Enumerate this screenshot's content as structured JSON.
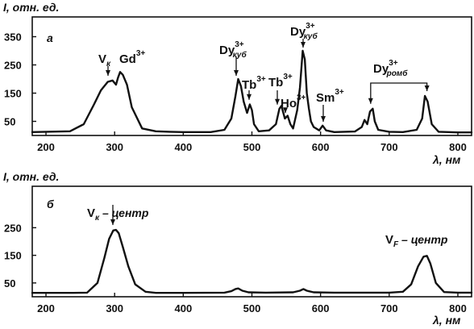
{
  "chart_data": [
    {
      "type": "line",
      "panel_label": "а",
      "ylabel": "I, отн. ед.",
      "xlabel": "λ, нм",
      "xlim": [
        180,
        820
      ],
      "ylim": [
        0,
        420
      ],
      "xticks": [
        200,
        300,
        400,
        500,
        600,
        700,
        800
      ],
      "yticks": [
        50,
        150,
        250,
        350
      ],
      "grid": false,
      "series": [
        {
          "x": [
            180,
            235,
            255,
            270,
            280,
            290,
            297,
            302,
            305,
            308,
            312,
            318,
            325,
            340,
            360,
            380,
            400,
            440,
            460,
            470,
            476,
            480,
            484,
            488,
            493,
            497,
            500,
            503,
            510,
            525,
            535,
            540,
            543,
            548,
            552,
            556,
            560,
            566,
            570,
            574,
            577,
            580,
            583,
            586,
            590,
            598,
            603,
            608,
            620,
            650,
            660,
            664,
            668,
            672,
            676,
            679,
            684,
            700,
            720,
            740,
            748,
            752,
            756,
            762,
            772,
            800,
            820
          ],
          "values": [
            12,
            15,
            40,
            110,
            160,
            190,
            195,
            180,
            205,
            225,
            215,
            180,
            100,
            25,
            15,
            13,
            12,
            12,
            20,
            60,
            140,
            200,
            175,
            120,
            80,
            110,
            90,
            40,
            15,
            18,
            40,
            95,
            105,
            60,
            70,
            40,
            25,
            90,
            170,
            300,
            270,
            150,
            95,
            50,
            30,
            18,
            35,
            18,
            12,
            14,
            30,
            55,
            40,
            85,
            95,
            50,
            20,
            13,
            12,
            20,
            60,
            140,
            120,
            40,
            13,
            11,
            11
          ]
        }
      ],
      "annotations": [
        {
          "label": "V",
          "sub": "к",
          "sup": "",
          "points": [
            [
              295,
              200
            ]
          ]
        },
        {
          "label": "Gd",
          "sub": "",
          "sup": "3+",
          "points": [
            [
              308,
              230
            ]
          ]
        },
        {
          "label": "Dy",
          "sub": "куб",
          "sup": "3+",
          "points": [
            [
              481,
              200
            ]
          ]
        },
        {
          "label": "Tb",
          "sub": "",
          "sup": "3+",
          "points": [
            [
              498,
              115
            ]
          ]
        },
        {
          "label": "Tb",
          "sub": "",
          "sup": "3+",
          "points": [
            [
              541,
              98
            ]
          ]
        },
        {
          "label": "Ho",
          "sub": "",
          "sup": "3+",
          "points": [
            [
              550,
              68
            ]
          ]
        },
        {
          "label": "Dy",
          "sub": "куб",
          "sup": "3+",
          "points": [
            [
              575,
              300
            ]
          ]
        },
        {
          "label": "Sm",
          "sub": "",
          "sup": "3+",
          "points": [
            [
              603,
              37
            ]
          ]
        },
        {
          "label": "Dy",
          "sub": "ромб",
          "sup": "3+",
          "points": [
            [
              673,
              95
            ],
            [
              755,
              140
            ]
          ]
        }
      ]
    },
    {
      "type": "line",
      "panel_label": "б",
      "ylabel": "I, отн. ед.",
      "xlabel": "λ, нм",
      "xlim": [
        180,
        820
      ],
      "ylim": [
        0,
        400
      ],
      "xticks": [
        200,
        300,
        400,
        500,
        600,
        700,
        800
      ],
      "yticks": [
        50,
        150,
        250
      ],
      "grid": false,
      "series": [
        {
          "x": [
            180,
            240,
            260,
            275,
            285,
            292,
            298,
            302,
            306,
            312,
            320,
            330,
            345,
            360,
            400,
            460,
            470,
            476,
            480,
            486,
            495,
            520,
            560,
            570,
            575,
            580,
            590,
            620,
            700,
            720,
            732,
            742,
            750,
            755,
            760,
            768,
            780,
            800,
            820
          ],
          "values": [
            14,
            14,
            15,
            50,
            140,
            210,
            240,
            242,
            230,
            180,
            110,
            45,
            18,
            14,
            14,
            15,
            20,
            28,
            30,
            22,
            16,
            15,
            16,
            22,
            28,
            22,
            16,
            15,
            15,
            18,
            45,
            110,
            145,
            148,
            120,
            50,
            17,
            15,
            15
          ]
        }
      ],
      "annotations": [
        {
          "label": "V",
          "sub": "к",
          "suffix": " – центр",
          "points": [
            [
              300,
              248
            ]
          ]
        },
        {
          "label": "V",
          "sub": "F",
          "suffix": " – центр",
          "points": []
        }
      ]
    }
  ]
}
